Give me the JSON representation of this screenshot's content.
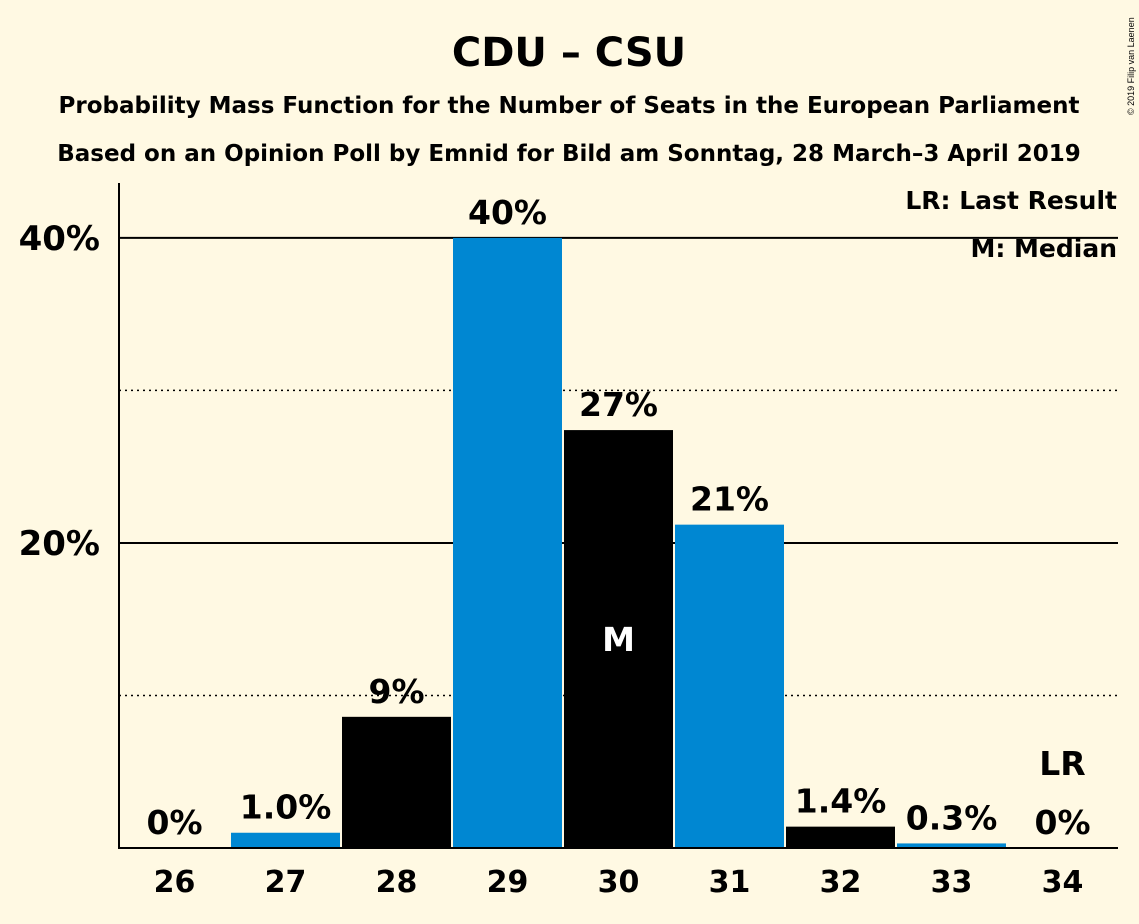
{
  "chart_data": {
    "type": "bar",
    "title": "CDU – CSU",
    "subtitle1": "Probability Mass Function for the Number of Seats in the European Parliament",
    "subtitle2": "Based on an Opinion Poll by Emnid for Bild am Sonntag, 28 March–3 April 2019",
    "categories": [
      "26",
      "27",
      "28",
      "29",
      "30",
      "31",
      "32",
      "33",
      "34"
    ],
    "values": [
      0,
      1.0,
      8.6,
      40.0,
      27.4,
      21.2,
      1.4,
      0.3,
      0
    ],
    "value_labels": [
      "0%",
      "1.0%",
      "9%",
      "40%",
      "27%",
      "21%",
      "1.4%",
      "0.3%",
      "0%"
    ],
    "bar_colors": [
      "#0087D2",
      "#0087D2",
      "#000000",
      "#0087D2",
      "#000000",
      "#0087D2",
      "#000000",
      "#0087D2",
      "#0087D2"
    ],
    "ylim": [
      0,
      43.6
    ],
    "yticks": [
      {
        "value": 20,
        "label": "20%"
      },
      {
        "value": 40,
        "label": "40%"
      }
    ],
    "dotted_gridlines": [
      10,
      30
    ],
    "median_category": "30",
    "median_marker": "M",
    "last_result_category": "34",
    "last_result_marker": "LR",
    "legend": [
      "LR: Last Result",
      "M: Median"
    ],
    "legend_position": "top-right",
    "copyright": "© 2019 Filip van Laenen"
  }
}
